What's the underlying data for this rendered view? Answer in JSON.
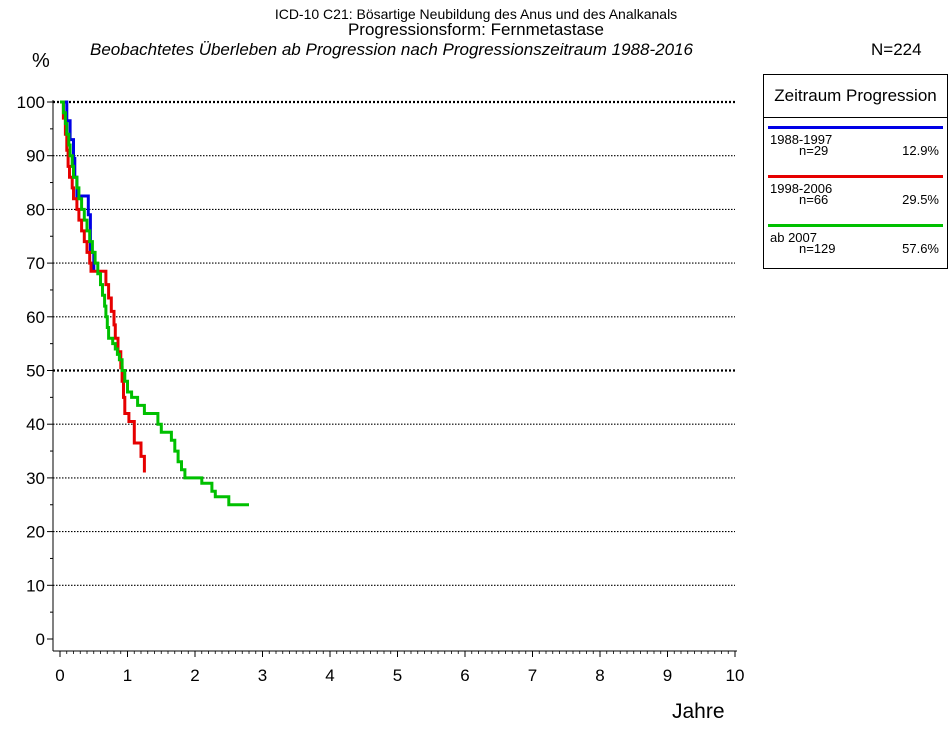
{
  "header": {
    "title": "ICD-10 C21: Bösartige Neubildung des Anus und des Analkanals",
    "subtitle_main": "Progressionsform: Fernmetastase",
    "subtitle_italic": "Beobachtetes Überleben ab Progression nach Progressionszeitraum 1988-2016",
    "n_total": "N=224"
  },
  "chart_data": {
    "type": "line",
    "xlabel": "Jahre",
    "ylabel": "%",
    "xlim": [
      0,
      10
    ],
    "ylim": [
      0,
      100
    ],
    "x_ticks": [
      "0",
      "1",
      "2",
      "3",
      "4",
      "5",
      "6",
      "7",
      "8",
      "9",
      "10"
    ],
    "y_ticks": [
      "0",
      "10",
      "20",
      "30",
      "40",
      "50",
      "60",
      "70",
      "80",
      "90",
      "100"
    ],
    "grid": "horizontal dotted",
    "legend": {
      "title": "Zeitraum Progression",
      "placement": "top-right"
    },
    "series": [
      {
        "name": "1988-1997",
        "n": "n=29",
        "share": "12.9%",
        "color": "#0000e6",
        "points": [
          [
            0,
            100
          ],
          [
            0.1,
            100
          ],
          [
            0.1,
            96.5
          ],
          [
            0.15,
            96.5
          ],
          [
            0.15,
            93
          ],
          [
            0.2,
            93
          ],
          [
            0.2,
            89.5
          ],
          [
            0.22,
            89.5
          ],
          [
            0.22,
            86
          ],
          [
            0.25,
            86
          ],
          [
            0.25,
            82.5
          ],
          [
            0.42,
            82.5
          ],
          [
            0.42,
            79
          ],
          [
            0.45,
            79
          ],
          [
            0.45,
            72
          ],
          [
            0.5,
            72
          ],
          [
            0.5,
            68.5
          ]
        ]
      },
      {
        "name": "1998-2006",
        "n": "n=66",
        "share": "29.5%",
        "color": "#e60000",
        "points": [
          [
            0,
            100
          ],
          [
            0.05,
            100
          ],
          [
            0.05,
            97
          ],
          [
            0.08,
            97
          ],
          [
            0.08,
            94
          ],
          [
            0.1,
            94
          ],
          [
            0.1,
            91
          ],
          [
            0.12,
            91
          ],
          [
            0.12,
            88
          ],
          [
            0.14,
            88
          ],
          [
            0.14,
            86
          ],
          [
            0.18,
            86
          ],
          [
            0.18,
            84
          ],
          [
            0.2,
            84
          ],
          [
            0.2,
            82
          ],
          [
            0.25,
            82
          ],
          [
            0.25,
            80
          ],
          [
            0.28,
            80
          ],
          [
            0.28,
            78
          ],
          [
            0.32,
            78
          ],
          [
            0.32,
            76
          ],
          [
            0.36,
            76
          ],
          [
            0.36,
            74
          ],
          [
            0.4,
            74
          ],
          [
            0.4,
            72
          ],
          [
            0.44,
            72
          ],
          [
            0.44,
            70
          ],
          [
            0.46,
            70
          ],
          [
            0.46,
            68.5
          ],
          [
            0.68,
            68.5
          ],
          [
            0.68,
            66
          ],
          [
            0.72,
            66
          ],
          [
            0.72,
            63.5
          ],
          [
            0.76,
            63.5
          ],
          [
            0.76,
            61
          ],
          [
            0.8,
            61
          ],
          [
            0.8,
            58.5
          ],
          [
            0.82,
            58.5
          ],
          [
            0.82,
            56
          ],
          [
            0.86,
            56
          ],
          [
            0.86,
            53.5
          ],
          [
            0.9,
            53.5
          ],
          [
            0.9,
            50.5
          ],
          [
            0.92,
            50.5
          ],
          [
            0.92,
            48
          ],
          [
            0.94,
            48
          ],
          [
            0.94,
            45
          ],
          [
            0.96,
            45
          ],
          [
            0.96,
            42
          ],
          [
            1.02,
            42
          ],
          [
            1.02,
            40.5
          ],
          [
            1.1,
            40.5
          ],
          [
            1.1,
            36.5
          ],
          [
            1.2,
            36.5
          ],
          [
            1.2,
            34
          ],
          [
            1.25,
            34
          ],
          [
            1.25,
            31
          ]
        ]
      },
      {
        "name": "ab 2007",
        "n": "n=129",
        "share": "57.6%",
        "color": "#00c000",
        "points": [
          [
            0,
            100
          ],
          [
            0.05,
            100
          ],
          [
            0.05,
            98
          ],
          [
            0.08,
            98
          ],
          [
            0.08,
            96
          ],
          [
            0.1,
            96
          ],
          [
            0.1,
            94
          ],
          [
            0.13,
            94
          ],
          [
            0.13,
            92
          ],
          [
            0.15,
            92
          ],
          [
            0.15,
            90
          ],
          [
            0.18,
            90
          ],
          [
            0.18,
            88
          ],
          [
            0.2,
            88
          ],
          [
            0.2,
            86
          ],
          [
            0.25,
            86
          ],
          [
            0.25,
            84
          ],
          [
            0.28,
            84
          ],
          [
            0.28,
            82
          ],
          [
            0.32,
            82
          ],
          [
            0.32,
            80
          ],
          [
            0.36,
            80
          ],
          [
            0.36,
            78
          ],
          [
            0.4,
            78
          ],
          [
            0.4,
            76
          ],
          [
            0.44,
            76
          ],
          [
            0.44,
            74
          ],
          [
            0.48,
            74
          ],
          [
            0.48,
            72
          ],
          [
            0.52,
            72
          ],
          [
            0.52,
            70
          ],
          [
            0.56,
            70
          ],
          [
            0.56,
            68
          ],
          [
            0.6,
            68
          ],
          [
            0.6,
            66
          ],
          [
            0.63,
            66
          ],
          [
            0.63,
            64
          ],
          [
            0.66,
            64
          ],
          [
            0.66,
            62
          ],
          [
            0.68,
            62
          ],
          [
            0.68,
            60
          ],
          [
            0.7,
            60
          ],
          [
            0.7,
            58
          ],
          [
            0.72,
            58
          ],
          [
            0.72,
            56
          ],
          [
            0.78,
            56
          ],
          [
            0.78,
            55
          ],
          [
            0.82,
            55
          ],
          [
            0.82,
            54
          ],
          [
            0.85,
            54
          ],
          [
            0.85,
            53
          ],
          [
            0.88,
            53
          ],
          [
            0.88,
            52
          ],
          [
            0.92,
            52
          ],
          [
            0.92,
            50
          ],
          [
            0.96,
            50
          ],
          [
            0.96,
            48
          ],
          [
            1.0,
            48
          ],
          [
            1.0,
            46
          ],
          [
            1.06,
            46
          ],
          [
            1.06,
            45
          ],
          [
            1.15,
            45
          ],
          [
            1.15,
            43.5
          ],
          [
            1.25,
            43.5
          ],
          [
            1.25,
            42
          ],
          [
            1.45,
            42
          ],
          [
            1.45,
            40
          ],
          [
            1.5,
            40
          ],
          [
            1.5,
            38.5
          ],
          [
            1.65,
            38.5
          ],
          [
            1.65,
            37
          ],
          [
            1.7,
            37
          ],
          [
            1.7,
            35
          ],
          [
            1.75,
            35
          ],
          [
            1.75,
            33
          ],
          [
            1.8,
            33
          ],
          [
            1.8,
            31.5
          ],
          [
            1.85,
            31.5
          ],
          [
            1.85,
            30
          ],
          [
            2.1,
            30
          ],
          [
            2.1,
            29
          ],
          [
            2.25,
            29
          ],
          [
            2.25,
            27.5
          ],
          [
            2.3,
            27.5
          ],
          [
            2.3,
            26.5
          ],
          [
            2.5,
            26.5
          ],
          [
            2.5,
            25
          ],
          [
            2.8,
            25
          ]
        ]
      }
    ]
  }
}
